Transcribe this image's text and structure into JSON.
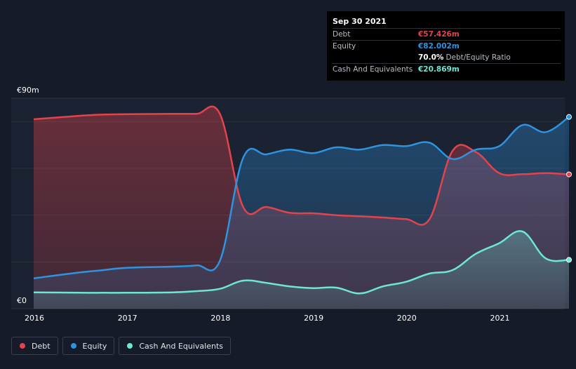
{
  "tooltip": {
    "date": "Sep 30 2021",
    "debt_label": "Debt",
    "debt_value": "€57.426m",
    "equity_label": "Equity",
    "equity_value": "€82.002m",
    "ratio_value": "70.0%",
    "ratio_label": "Debt/Equity Ratio",
    "cash_label": "Cash And Equivalents",
    "cash_value": "€20.869m"
  },
  "colors": {
    "debt": "#e4434b",
    "equity": "#2f93e0",
    "cash": "#6ee6d4",
    "background": "#151b28"
  },
  "legend": [
    {
      "label": "Debt",
      "color": "#e4434b"
    },
    {
      "label": "Equity",
      "color": "#2f93e0"
    },
    {
      "label": "Cash And Equivalents",
      "color": "#6ee6d4"
    }
  ],
  "chart_data": {
    "type": "area",
    "title": "",
    "xlabel": "",
    "ylabel": "",
    "ylim": [
      0,
      90
    ],
    "xlim": [
      2016.0,
      2021.75
    ],
    "y_tick_labels": [
      {
        "value": 90,
        "label": "€90m"
      },
      {
        "value": 0,
        "label": "€0"
      }
    ],
    "x_ticks": [
      2016,
      2017,
      2018,
      2019,
      2020,
      2021
    ],
    "x_tick_labels": [
      "2016",
      "2017",
      "2018",
      "2019",
      "2020",
      "2021"
    ],
    "series": [
      {
        "name": "Debt",
        "color": "#e4434b",
        "x": [
          2016.0,
          2016.5,
          2016.75,
          2017.0,
          2017.5,
          2017.75,
          2018.0,
          2018.25,
          2018.5,
          2018.75,
          2019.0,
          2019.25,
          2019.5,
          2019.75,
          2020.0,
          2020.25,
          2020.5,
          2020.75,
          2021.0,
          2021.25,
          2021.5,
          2021.75
        ],
        "values": [
          81.0,
          82.5,
          83.0,
          83.2,
          83.3,
          83.3,
          83.3,
          43.5,
          43.5,
          41.0,
          40.8,
          40.0,
          39.5,
          39.0,
          38.3,
          38.2,
          67.5,
          67.0,
          58.0,
          57.5,
          58.0,
          57.426
        ]
      },
      {
        "name": "Equity",
        "color": "#2f93e0",
        "x": [
          2016.0,
          2016.5,
          2016.75,
          2017.0,
          2017.5,
          2017.75,
          2018.0,
          2018.25,
          2018.5,
          2018.75,
          2019.0,
          2019.25,
          2019.5,
          2019.75,
          2020.0,
          2020.25,
          2020.5,
          2020.75,
          2021.0,
          2021.25,
          2021.5,
          2021.75
        ],
        "values": [
          13.0,
          15.5,
          16.5,
          17.5,
          18.0,
          18.5,
          20.5,
          64.5,
          66.0,
          68.0,
          66.5,
          69.0,
          68.0,
          70.0,
          69.5,
          71.0,
          64.0,
          68.0,
          69.5,
          78.5,
          75.5,
          82.002
        ]
      },
      {
        "name": "Cash And Equivalents",
        "color": "#6ee6d4",
        "x": [
          2016.0,
          2016.5,
          2016.75,
          2017.0,
          2017.5,
          2017.75,
          2018.0,
          2018.25,
          2018.5,
          2018.75,
          2019.0,
          2019.25,
          2019.5,
          2019.75,
          2020.0,
          2020.25,
          2020.5,
          2020.75,
          2021.0,
          2021.25,
          2021.5,
          2021.75
        ],
        "values": [
          7.0,
          6.8,
          6.8,
          6.8,
          7.0,
          7.5,
          8.5,
          12.0,
          11.0,
          9.5,
          8.8,
          9.0,
          6.5,
          9.5,
          11.5,
          15.0,
          16.5,
          23.5,
          28.0,
          33.0,
          21.5,
          20.869
        ]
      }
    ]
  }
}
